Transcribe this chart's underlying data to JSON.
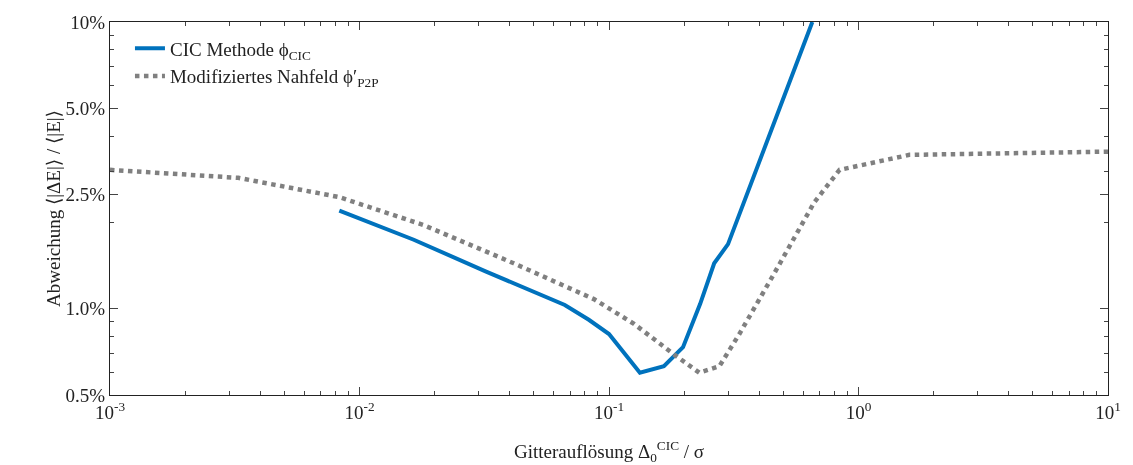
{
  "chart_data": {
    "type": "line",
    "xlabel": "Gitterauflösung Δ$_{0}$$^{CIC}$ / σ",
    "ylabel": "Abweichung ⟨|ΔE|⟩ / ⟨|E|⟩",
    "log": "xy",
    "grid": false,
    "legend": "top left",
    "marker": "none",
    "xlim": [
      0.001,
      10
    ],
    "xticks": [
      {
        "value": 0.001,
        "label": "10$^{-3}$"
      },
      {
        "value": 0.01,
        "label": "10$^{-2}$"
      },
      {
        "value": 0.1,
        "label": "10$^{-1}$"
      },
      {
        "value": 1,
        "label": "10$^{0}$"
      },
      {
        "value": 10,
        "label": "10$^{1}$"
      }
    ],
    "ylim": [
      0.5,
      10
    ],
    "yticks": [
      {
        "value": 0.5,
        "label": "0.5%"
      },
      {
        "value": 1,
        "label": "1.0%"
      },
      {
        "value": 2.5,
        "label": "2.5%"
      },
      {
        "value": 5,
        "label": "5.0%"
      },
      {
        "value": 10,
        "label": "10%"
      }
    ],
    "series": [
      {
        "name": "CIC Methode ϕ$_{CIC}$",
        "color": "#0072bd",
        "line_style": "solid",
        "x": [
          0.0083,
          0.0165,
          0.032,
          0.0665,
          0.083,
          0.1,
          0.133,
          0.166,
          0.198,
          0.232,
          0.264,
          0.3,
          0.653
        ],
        "values": [
          2.2,
          1.74,
          1.35,
          1.03,
          0.915,
          0.816,
          0.598,
          0.63,
          0.734,
          1.04,
          1.44,
          1.68,
          10
        ]
      },
      {
        "name": "Modifiziertes Nahfeld ϕ′$_{P2P}$",
        "color": "#808080",
        "line_style": "dotted",
        "x": [
          0.001,
          0.00327,
          0.0083,
          0.018,
          0.0415,
          0.087,
          0.126,
          0.182,
          0.23,
          0.277,
          0.333,
          0.46,
          0.665,
          0.84,
          1.6,
          10
        ],
        "values": [
          3.05,
          2.86,
          2.45,
          1.96,
          1.44,
          1.08,
          0.885,
          0.693,
          0.598,
          0.63,
          0.816,
          1.33,
          2.35,
          3.05,
          3.44,
          3.53
        ]
      }
    ]
  }
}
